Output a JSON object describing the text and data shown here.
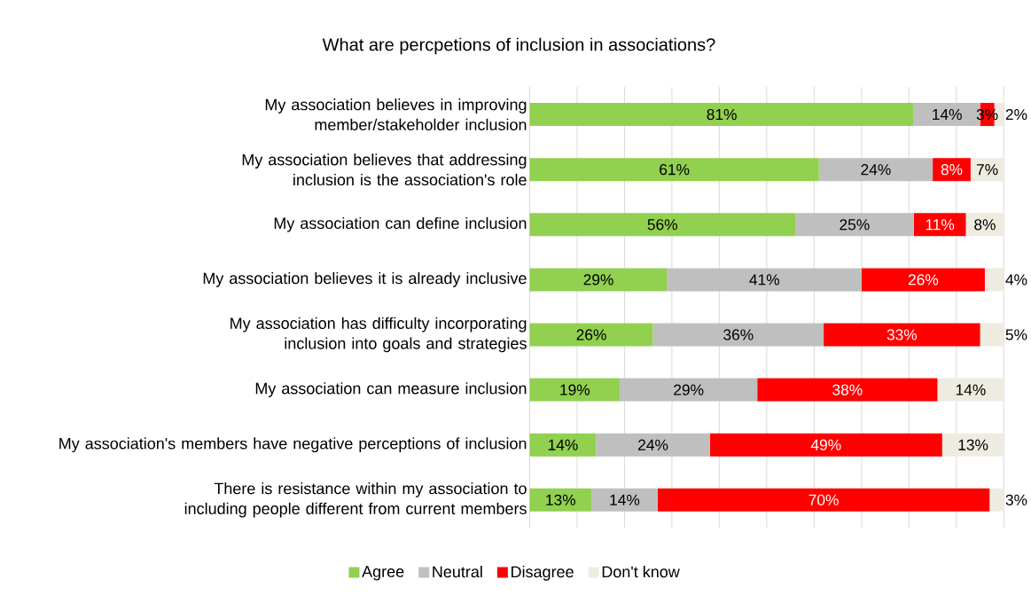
{
  "chart_data": {
    "type": "bar",
    "orientation": "horizontal",
    "stacked": true,
    "title": "What are percpetions of inclusion in associations?",
    "categories": [
      "My association believes in improving member/stakeholder inclusion",
      "My association believes that addressing inclusion is the association's role",
      "My association can define inclusion",
      "My association believes it is already inclusive",
      "My association has difficulty incorporating inclusion into goals and strategies",
      "My association can measure inclusion",
      "My association's members have negative perceptions of inclusion",
      "There is resistance within my association to including people different from current members"
    ],
    "series": [
      {
        "name": "Agree",
        "color": "#92d050",
        "values": [
          81,
          61,
          56,
          29,
          26,
          19,
          14,
          13
        ],
        "value_labels": [
          "81%",
          "61%",
          "56%",
          "29%",
          "26%",
          "19%",
          "14%",
          "13%"
        ]
      },
      {
        "name": "Neutral",
        "color": "#bfbfbf",
        "values": [
          14,
          24,
          25,
          41,
          36,
          29,
          24,
          14
        ],
        "value_labels": [
          "14%",
          "24%",
          "25%",
          "41%",
          "36%",
          "29%",
          "24%",
          "14%"
        ]
      },
      {
        "name": "Disagree",
        "color": "#ff0000",
        "values": [
          3,
          8,
          11,
          26,
          33,
          38,
          49,
          70
        ],
        "value_labels": [
          "3%",
          "8%",
          "11%",
          "26%",
          "33%",
          "38%",
          "49%",
          "70%"
        ]
      },
      {
        "name": "Don't know",
        "color": "#eeece1",
        "values": [
          2,
          7,
          8,
          4,
          5,
          14,
          13,
          3
        ],
        "value_labels": [
          "2%",
          "7%",
          "8%",
          "4%",
          "5%",
          "14%",
          "13%",
          "3%"
        ]
      }
    ],
    "xlim": [
      0,
      100
    ],
    "xticks": [
      {
        "value": 0,
        "label": null
      },
      {
        "value": 10,
        "label": null
      },
      {
        "value": 20,
        "label": null
      },
      {
        "value": 30,
        "label": null
      },
      {
        "value": 40,
        "label": null
      },
      {
        "value": 50,
        "label": null
      },
      {
        "value": 60,
        "label": null
      },
      {
        "value": 70,
        "label": null
      },
      {
        "value": 80,
        "label": null
      },
      {
        "value": 90,
        "label": null
      },
      {
        "value": 100,
        "label": null
      }
    ],
    "grid": "x",
    "legend": "bottom",
    "tick_labels": "y"
  }
}
